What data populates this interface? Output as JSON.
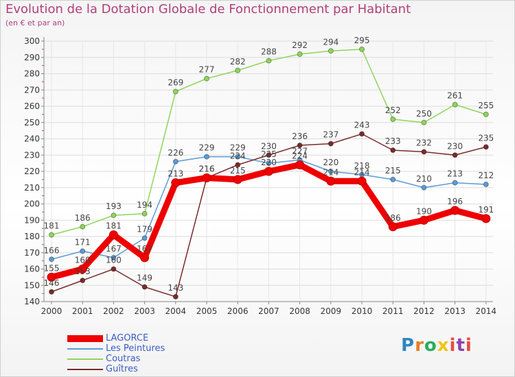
{
  "header": {
    "title": "Evolution de la Dotation Globale de Fonctionnement par Habitant",
    "subtitle": "(en € et par an)"
  },
  "logo": {
    "text": "Proxiti"
  },
  "chart_data": {
    "type": "line",
    "title": "Evolution de la Dotation Globale de Fonctionnement par Habitant",
    "subtitle": "(en € et par an)",
    "xlabel": "",
    "ylabel": "",
    "x": [
      "2000",
      "2001",
      "2002",
      "2003",
      "2004",
      "2005",
      "2006",
      "2007",
      "2008",
      "2009",
      "2010",
      "2011",
      "2012",
      "2013",
      "2014"
    ],
    "ylim": [
      140,
      300
    ],
    "yticks": [
      140,
      150,
      160,
      170,
      180,
      190,
      200,
      210,
      220,
      230,
      240,
      250,
      260,
      270,
      280,
      290,
      300
    ],
    "grid": true,
    "legend_position": "bottom-left",
    "series": [
      {
        "name": "LAGORCE",
        "color": "#ee0000",
        "emphasis": true,
        "values": [
          155,
          160,
          181,
          167,
          213,
          216,
          215,
          220,
          224,
          214,
          214,
          186,
          190,
          196,
          191
        ]
      },
      {
        "name": "Les Peintures",
        "color": "#5b9bd5",
        "values": [
          166,
          171,
          167,
          179,
          226,
          229,
          229,
          225,
          227,
          220,
          218,
          215,
          210,
          213,
          212
        ]
      },
      {
        "name": "Coutras",
        "color": "#8cd65a",
        "values": [
          181,
          186,
          193,
          194,
          269,
          277,
          282,
          288,
          292,
          294,
          295,
          252,
          250,
          261,
          255
        ]
      },
      {
        "name": "Guîtres",
        "color": "#7a2a2a",
        "values": [
          146,
          153,
          160,
          149,
          143,
          216,
          224,
          230,
          236,
          237,
          243,
          233,
          232,
          230,
          235
        ]
      }
    ]
  }
}
